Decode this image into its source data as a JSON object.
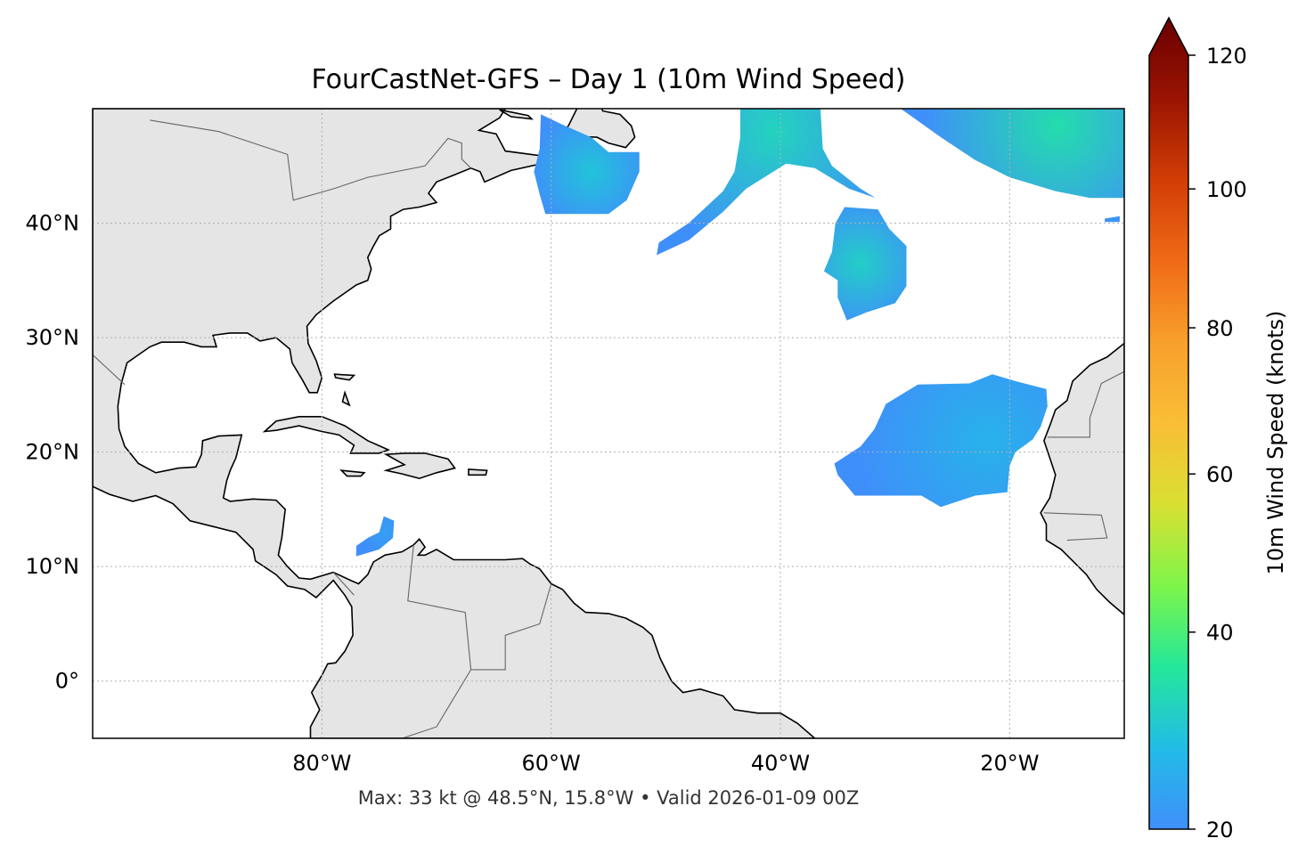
{
  "title": "FourCastNet-GFS – Day 1 (10m Wind Speed)",
  "footer": "Max: 33 kt @ 48.5°N, 15.8°W • Valid 2026-01-09 00Z",
  "map": {
    "projection": "PlateCarree",
    "extent": {
      "lon": [
        -100,
        -10
      ],
      "lat": [
        -5,
        50
      ]
    },
    "land_color": "#e5e5e5",
    "ocean_color": "#ffffff",
    "gridlines": {
      "lon": [
        -80,
        -60,
        -40,
        -20
      ],
      "lat": [
        0,
        10,
        20,
        30,
        40
      ],
      "style": "dotted",
      "color": "#b0b0b0"
    },
    "lon_labels": [
      "80°W",
      "60°W",
      "40°W",
      "20°W"
    ],
    "lat_labels": [
      "0°",
      "10°N",
      "20°N",
      "30°N",
      "40°N"
    ],
    "wind_regions": [
      {
        "peak_kt": 28,
        "center": [
          -56.5,
          44.5
        ],
        "polygon": [
          [
            -60.9,
            49.5
          ],
          [
            -59,
            48.6
          ],
          [
            -56.5,
            47.5
          ],
          [
            -55,
            46.2
          ],
          [
            -52.3,
            46.2
          ],
          [
            -52.3,
            44.5
          ],
          [
            -53.4,
            42
          ],
          [
            -55,
            40.8
          ],
          [
            -60.5,
            40.8
          ],
          [
            -61,
            42.5
          ],
          [
            -61.5,
            44.5
          ],
          [
            -61,
            46.5
          ]
        ]
      },
      {
        "peak_kt": 31,
        "center": [
          -40.5,
          48
        ],
        "polygon": [
          [
            -43.5,
            50
          ],
          [
            -36.5,
            50
          ],
          [
            -36.3,
            46.5
          ],
          [
            -35.5,
            45
          ],
          [
            -33,
            43
          ],
          [
            -31.7,
            42.2
          ],
          [
            -34,
            43
          ],
          [
            -37,
            44.8
          ],
          [
            -39.5,
            45.2
          ],
          [
            -43,
            43
          ],
          [
            -45,
            41
          ],
          [
            -48,
            38.5
          ],
          [
            -50.8,
            37.2
          ],
          [
            -50.6,
            38.3
          ],
          [
            -48,
            40
          ],
          [
            -45,
            42.8
          ],
          [
            -44,
            44.5
          ],
          [
            -43.5,
            47.5
          ]
        ]
      },
      {
        "peak_kt": 30,
        "center": [
          -33,
          36.5
        ],
        "polygon": [
          [
            -34.4,
            41.4
          ],
          [
            -31.5,
            41.2
          ],
          [
            -30.5,
            39.5
          ],
          [
            -29,
            38
          ],
          [
            -29,
            34.5
          ],
          [
            -30,
            33
          ],
          [
            -32.5,
            32.2
          ],
          [
            -34.2,
            31.5
          ],
          [
            -35,
            33.5
          ],
          [
            -35,
            35
          ],
          [
            -36.2,
            35.8
          ],
          [
            -35.5,
            37.5
          ],
          [
            -35.2,
            40
          ]
        ]
      },
      {
        "peak_kt": 33,
        "center": [
          -15.8,
          48.5
        ],
        "polygon": [
          [
            -29.5,
            50
          ],
          [
            -10,
            50
          ],
          [
            -10,
            42.2
          ],
          [
            -13,
            42.2
          ],
          [
            -16,
            42.8
          ],
          [
            -20,
            44
          ],
          [
            -23,
            45.5
          ],
          [
            -26,
            47.5
          ]
        ]
      },
      {
        "peak_kt": 21,
        "center": [
          -11,
          40.3
        ],
        "polygon": [
          [
            -11.7,
            40.4
          ],
          [
            -10.4,
            40.6
          ],
          [
            -10.4,
            40.1
          ],
          [
            -11.7,
            40.1
          ]
        ]
      },
      {
        "peak_kt": 25,
        "center": [
          -22,
          21
        ],
        "polygon": [
          [
            -30.8,
            24.2
          ],
          [
            -28,
            25.9
          ],
          [
            -23.5,
            26
          ],
          [
            -21.5,
            26.8
          ],
          [
            -19.5,
            26.2
          ],
          [
            -16.8,
            25.5
          ],
          [
            -16.7,
            24
          ],
          [
            -17.3,
            22.2
          ],
          [
            -18,
            21.1
          ],
          [
            -19.5,
            20
          ],
          [
            -20,
            18.8
          ],
          [
            -20.2,
            16.5
          ],
          [
            -23,
            16.2
          ],
          [
            -26,
            15.2
          ],
          [
            -27.7,
            16.2
          ],
          [
            -33.5,
            16.2
          ],
          [
            -35,
            18
          ],
          [
            -35.3,
            19
          ],
          [
            -33,
            20.5
          ],
          [
            -31.8,
            22
          ]
        ]
      },
      {
        "peak_kt": 22,
        "center": [
          -74.5,
          13
        ],
        "polygon": [
          [
            -74.6,
            14.4
          ],
          [
            -73.7,
            14
          ],
          [
            -73.8,
            12.5
          ],
          [
            -75,
            11.5
          ],
          [
            -77,
            10.9
          ],
          [
            -77,
            11.8
          ],
          [
            -76,
            12.5
          ],
          [
            -75,
            13
          ]
        ]
      }
    ]
  },
  "colorbar": {
    "label": "10m Wind Speed (knots)",
    "min": 20,
    "max": 120,
    "extend": "max",
    "norm": "power",
    "gamma": 0.85,
    "ticks": [
      20,
      40,
      60,
      80,
      100,
      120
    ],
    "tick_labels": [
      "20",
      "40",
      "60",
      "80",
      "100",
      "120"
    ],
    "colors": [
      "#3f8ffa",
      "#22bce6",
      "#24e79a",
      "#7ef54a",
      "#d9e032",
      "#f9be36",
      "#f8a02c",
      "#f06a16",
      "#d23d06",
      "#9a1402",
      "#6a0000"
    ]
  }
}
